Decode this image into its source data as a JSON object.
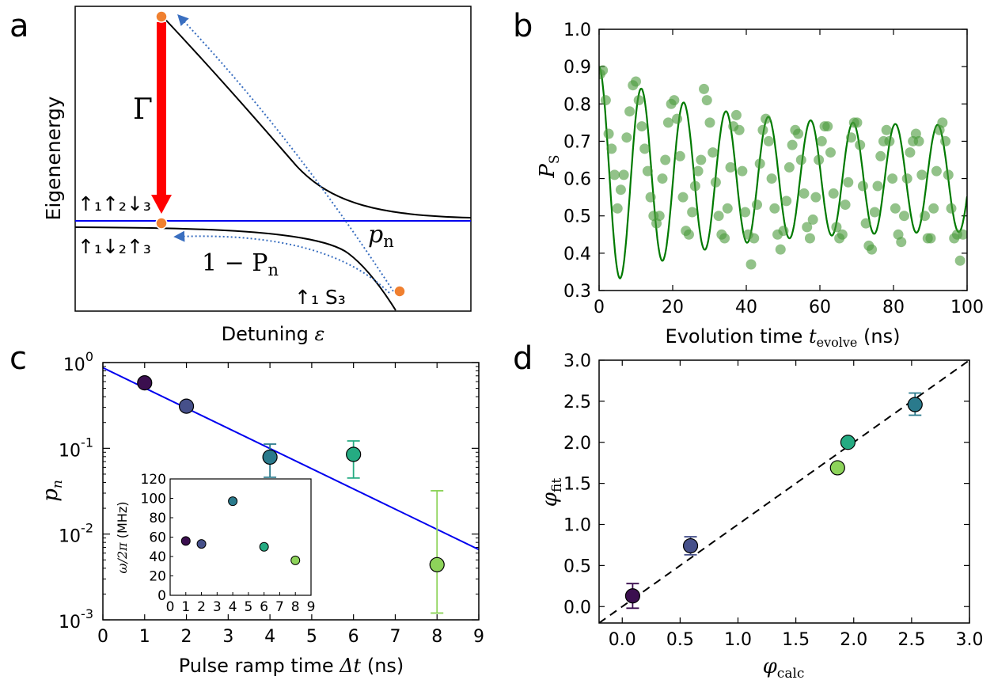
{
  "panel_labels": {
    "a": "a",
    "b": "b",
    "c": "c",
    "d": "d"
  },
  "colors": {
    "fit_line": "#0000ee",
    "red_arrow": "#ff0000",
    "dot_orange": "#f08030",
    "dotted_arrow": "#3a6fc0",
    "green_line": "#007a00",
    "green_dots": "#4a9a3a",
    "dashed": "#000000"
  },
  "chart_data": [
    {
      "id": "a",
      "type": "diagram",
      "ylabel": "Eigenenergy",
      "xlabel_text": "Detuning ",
      "xlabel_symbol": "ε",
      "labels": {
        "gamma": "Γ",
        "state_upper": "↑₁↑₂↓₃",
        "state_lower": "↑₁↓₂↑₃",
        "state_s": "↑₁ S₃",
        "one_minus": "1 − P",
        "one_minus_sub": "n",
        "pn": "p",
        "pn_sub": "n"
      }
    },
    {
      "id": "b",
      "type": "scatter",
      "xlabel_text": "Evolution time ",
      "xlabel_symbol": "t",
      "xlabel_sub": "evolve",
      "xlabel_unit": " (ns)",
      "ylabel_symbol": "P",
      "ylabel_sub": "S",
      "xlim": [
        0,
        100
      ],
      "ylim": [
        0.3,
        1.0
      ],
      "xticks": [
        "0",
        "20",
        "40",
        "60",
        "80",
        "100"
      ],
      "yticks": [
        "0.3",
        "0.4",
        "0.5",
        "0.6",
        "0.7",
        "0.8",
        "0.9",
        "1.0"
      ],
      "points": [
        [
          0.3,
          0.88
        ],
        [
          1.0,
          0.89
        ],
        [
          1.8,
          0.81
        ],
        [
          2.6,
          0.72
        ],
        [
          3.4,
          0.68
        ],
        [
          4.2,
          0.61
        ],
        [
          5.0,
          0.52
        ],
        [
          5.9,
          0.57
        ],
        [
          6.7,
          0.61
        ],
        [
          7.5,
          0.71
        ],
        [
          8.3,
          0.78
        ],
        [
          9.2,
          0.85
        ],
        [
          10.0,
          0.86
        ],
        [
          10.8,
          0.81
        ],
        [
          11.6,
          0.74
        ],
        [
          12.4,
          0.68
        ],
        [
          13.2,
          0.62
        ],
        [
          14.0,
          0.55
        ],
        [
          14.8,
          0.5
        ],
        [
          15.6,
          0.48
        ],
        [
          16.4,
          0.5
        ],
        [
          17.2,
          0.6
        ],
        [
          18.0,
          0.65
        ],
        [
          18.8,
          0.75
        ],
        [
          19.6,
          0.8
        ],
        [
          20.4,
          0.81
        ],
        [
          21.2,
          0.76
        ],
        [
          22.0,
          0.66
        ],
        [
          22.8,
          0.55
        ],
        [
          23.6,
          0.46
        ],
        [
          24.4,
          0.45
        ],
        [
          25.3,
          0.51
        ],
        [
          26.1,
          0.58
        ],
        [
          26.9,
          0.62
        ],
        [
          27.7,
          0.65
        ],
        [
          28.5,
          0.84
        ],
        [
          29.3,
          0.81
        ],
        [
          30.1,
          0.75
        ],
        [
          30.9,
          0.67
        ],
        [
          31.7,
          0.59
        ],
        [
          32.5,
          0.5
        ],
        [
          33.3,
          0.45
        ],
        [
          34.1,
          0.44
        ],
        [
          34.9,
          0.52
        ],
        [
          35.7,
          0.63
        ],
        [
          36.5,
          0.74
        ],
        [
          37.3,
          0.77
        ],
        [
          38.1,
          0.73
        ],
        [
          38.9,
          0.62
        ],
        [
          39.7,
          0.51
        ],
        [
          40.5,
          0.45
        ],
        [
          41.3,
          0.37
        ],
        [
          42.1,
          0.44
        ],
        [
          42.9,
          0.53
        ],
        [
          43.7,
          0.64
        ],
        [
          44.5,
          0.73
        ],
        [
          45.3,
          0.76
        ],
        [
          46.1,
          0.7
        ],
        [
          46.9,
          0.6
        ],
        [
          47.7,
          0.52
        ],
        [
          48.5,
          0.45
        ],
        [
          49.3,
          0.41
        ],
        [
          50.1,
          0.46
        ],
        [
          50.9,
          0.54
        ],
        [
          51.7,
          0.63
        ],
        [
          52.5,
          0.69
        ],
        [
          53.3,
          0.73
        ],
        [
          54.1,
          0.72
        ],
        [
          54.9,
          0.65
        ],
        [
          55.7,
          0.56
        ],
        [
          56.5,
          0.47
        ],
        [
          57.3,
          0.44
        ],
        [
          58.1,
          0.49
        ],
        [
          58.9,
          0.55
        ],
        [
          59.7,
          0.65
        ],
        [
          60.5,
          0.7
        ],
        [
          61.3,
          0.74
        ],
        [
          62.1,
          0.74
        ],
        [
          62.9,
          0.67
        ],
        [
          63.7,
          0.56
        ],
        [
          64.5,
          0.47
        ],
        [
          65.3,
          0.44
        ],
        [
          66.1,
          0.45
        ],
        [
          66.9,
          0.53
        ],
        [
          67.7,
          0.59
        ],
        [
          68.5,
          0.71
        ],
        [
          69.3,
          0.75
        ],
        [
          70.1,
          0.75
        ],
        [
          70.9,
          0.69
        ],
        [
          71.7,
          0.58
        ],
        [
          72.5,
          0.48
        ],
        [
          73.3,
          0.42
        ],
        [
          74.1,
          0.41
        ],
        [
          74.9,
          0.51
        ],
        [
          75.7,
          0.58
        ],
        [
          76.5,
          0.66
        ],
        [
          77.3,
          0.7
        ],
        [
          78.1,
          0.73
        ],
        [
          78.9,
          0.7
        ],
        [
          79.7,
          0.6
        ],
        [
          80.5,
          0.52
        ],
        [
          81.3,
          0.45
        ],
        [
          82.1,
          0.43
        ],
        [
          82.9,
          0.5
        ],
        [
          83.7,
          0.6
        ],
        [
          84.5,
          0.67
        ],
        [
          85.3,
          0.7
        ],
        [
          86.1,
          0.72
        ],
        [
          86.9,
          0.7
        ],
        [
          87.7,
          0.61
        ],
        [
          88.5,
          0.5
        ],
        [
          89.3,
          0.44
        ],
        [
          90.1,
          0.44
        ],
        [
          90.9,
          0.52
        ],
        [
          91.7,
          0.62
        ],
        [
          92.5,
          0.73
        ],
        [
          93.3,
          0.75
        ],
        [
          94.1,
          0.7
        ],
        [
          94.9,
          0.61
        ],
        [
          95.7,
          0.52
        ],
        [
          96.5,
          0.44
        ],
        [
          97.3,
          0.45
        ],
        [
          98.1,
          0.38
        ],
        [
          98.9,
          0.45
        ]
      ],
      "fit": {
        "offset": 0.6,
        "amplitude0": 0.3,
        "decay_ns": 100,
        "amplitude_floor": 0.14,
        "period_ns": 11.5,
        "phase_deg": 0
      }
    },
    {
      "id": "c",
      "type": "scatter",
      "yscale": "log",
      "xlabel_text": "Pulse ramp time ",
      "xlabel_symbol": "Δt",
      "xlabel_unit": " (ns)",
      "ylabel_symbol": "p",
      "ylabel_sub": "n",
      "xlim": [
        0,
        9
      ],
      "ylim": [
        0.001,
        1
      ],
      "xticks": [
        "0",
        "1",
        "2",
        "3",
        "4",
        "5",
        "6",
        "7",
        "8",
        "9"
      ],
      "yticks": [
        {
          "base": "10",
          "exp": "0"
        },
        {
          "base": "10",
          "exp": "-1"
        },
        {
          "base": "10",
          "exp": "-2"
        },
        {
          "base": "10",
          "exp": "-3"
        }
      ],
      "points": [
        {
          "x": 1,
          "y": 0.58,
          "color": "#3b0f4f"
        },
        {
          "x": 2,
          "y": 0.31,
          "color": "#46508a"
        },
        {
          "x": 4,
          "y": 0.079,
          "err_lo": 0.046,
          "err_hi": 0.112,
          "color": "#2a7a8c"
        },
        {
          "x": 6,
          "y": 0.085,
          "err_lo": 0.045,
          "err_hi": 0.122,
          "color": "#25ab82"
        },
        {
          "x": 8,
          "y": 0.0044,
          "err_lo": 0.0012,
          "err_hi": 0.032,
          "color": "#8dd35a"
        }
      ],
      "fit_line": {
        "y_at_x0": 0.87,
        "y_at_x9": 0.0066
      },
      "inset": {
        "type": "scatter",
        "ylabel_symbol": "ω/2π",
        "ylabel_unit": " (MHz)",
        "xlim": [
          0,
          9
        ],
        "ylim": [
          0,
          120
        ],
        "xticks": [
          "0",
          "1",
          "2",
          "3",
          "4",
          "5",
          "6",
          "7",
          "8",
          "9"
        ],
        "yticks": [
          "0",
          "20",
          "40",
          "60",
          "80",
          "100",
          "120"
        ],
        "points": [
          {
            "x": 1,
            "y": 56,
            "color": "#3b0f4f"
          },
          {
            "x": 2,
            "y": 53,
            "color": "#46508a"
          },
          {
            "x": 4,
            "y": 97,
            "color": "#2a7a8c"
          },
          {
            "x": 6,
            "y": 50,
            "color": "#25ab82"
          },
          {
            "x": 8,
            "y": 36,
            "color": "#8dd35a"
          }
        ]
      }
    },
    {
      "id": "d",
      "type": "scatter",
      "xlabel_symbol": "φ",
      "xlabel_sub": "calc",
      "ylabel_symbol": "φ",
      "ylabel_sub": "fit",
      "xlim": [
        -0.2,
        3.0
      ],
      "ylim": [
        -0.2,
        3.0
      ],
      "xticks": [
        "0.0",
        "0.5",
        "1.0",
        "1.5",
        "2.0",
        "2.5",
        "3.0"
      ],
      "yticks": [
        "0.0",
        "0.5",
        "1.0",
        "1.5",
        "2.0",
        "2.5",
        "3.0"
      ],
      "points": [
        {
          "x": 0.09,
          "y": 0.13,
          "err_lo": -0.02,
          "err_hi": 0.28,
          "color": "#3b0f4f"
        },
        {
          "x": 0.59,
          "y": 0.74,
          "err_lo": 0.63,
          "err_hi": 0.85,
          "color": "#46508a"
        },
        {
          "x": 1.86,
          "y": 1.69,
          "color": "#8dd35a"
        },
        {
          "x": 1.95,
          "y": 2.0,
          "color": "#25ab82"
        },
        {
          "x": 2.53,
          "y": 2.46,
          "err_lo": 2.33,
          "err_hi": 2.6,
          "color": "#2a7a8c"
        }
      ],
      "reference_line": "y = x"
    }
  ]
}
